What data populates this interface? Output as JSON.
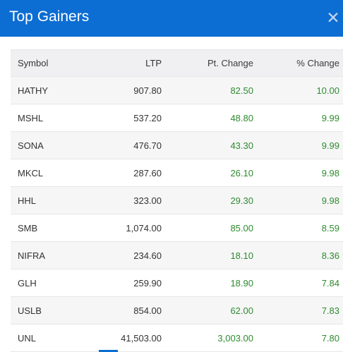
{
  "header": {
    "title": "Top Gainers"
  },
  "table": {
    "columns": {
      "symbol": "Symbol",
      "ltp": "LTP",
      "pt_change": "Pt. Change",
      "pct_change": "% Change"
    },
    "rows": [
      {
        "symbol": "HATHY",
        "ltp": "907.80",
        "pt_change": "82.50",
        "pct_change": "10.00"
      },
      {
        "symbol": "MSHL",
        "ltp": "537.20",
        "pt_change": "48.80",
        "pct_change": "9.99"
      },
      {
        "symbol": "SONA",
        "ltp": "476.70",
        "pt_change": "43.30",
        "pct_change": "9.99"
      },
      {
        "symbol": "MKCL",
        "ltp": "287.60",
        "pt_change": "26.10",
        "pct_change": "9.98"
      },
      {
        "symbol": "HHL",
        "ltp": "323.00",
        "pt_change": "29.30",
        "pct_change": "9.98"
      },
      {
        "symbol": "SMB",
        "ltp": "1,074.00",
        "pt_change": "85.00",
        "pct_change": "8.59"
      },
      {
        "symbol": "NIFRA",
        "ltp": "234.60",
        "pt_change": "18.10",
        "pct_change": "8.36"
      },
      {
        "symbol": "GLH",
        "ltp": "259.90",
        "pt_change": "18.90",
        "pct_change": "7.84"
      },
      {
        "symbol": "USLB",
        "ltp": "854.00",
        "pt_change": "62.00",
        "pct_change": "7.83"
      },
      {
        "symbol": "UNL",
        "ltp": "41,503.00",
        "pt_change": "3,003.00",
        "pct_change": "7.80"
      }
    ]
  },
  "colors": {
    "header_bg": "#0c6dd3",
    "gain_text": "#2e8b2e"
  },
  "icons": {
    "close": "close-icon"
  }
}
